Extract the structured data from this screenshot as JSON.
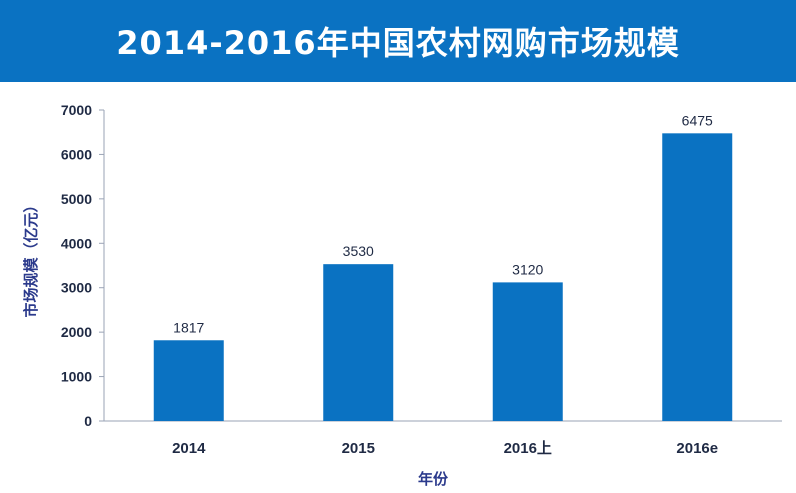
{
  "title": "2014-2016年中国农村网购市场规模",
  "colors": {
    "header": "#0a72c2",
    "bar": "#0a72c2",
    "axis_text": "#1f2a44",
    "axis_title": "#2b3a8c"
  },
  "chart_data": {
    "type": "bar",
    "title": "2014-2016年中国农村网购市场规模",
    "categories": [
      "2014",
      "2015",
      "2016上",
      "2016e"
    ],
    "values": [
      1817,
      3530,
      3120,
      6475
    ],
    "data_labels": [
      "1817",
      "3530",
      "3120",
      "6475"
    ],
    "xlabel": "年份",
    "ylabel": "市场规模（亿元）",
    "ylim": [
      0,
      7000
    ],
    "yticks": [
      0,
      1000,
      2000,
      3000,
      4000,
      5000,
      6000,
      7000
    ],
    "ytick_labels": [
      "0",
      "1000",
      "2000",
      "3000",
      "4000",
      "5000",
      "6000",
      "7000"
    ],
    "grid": false,
    "legend": "none"
  }
}
